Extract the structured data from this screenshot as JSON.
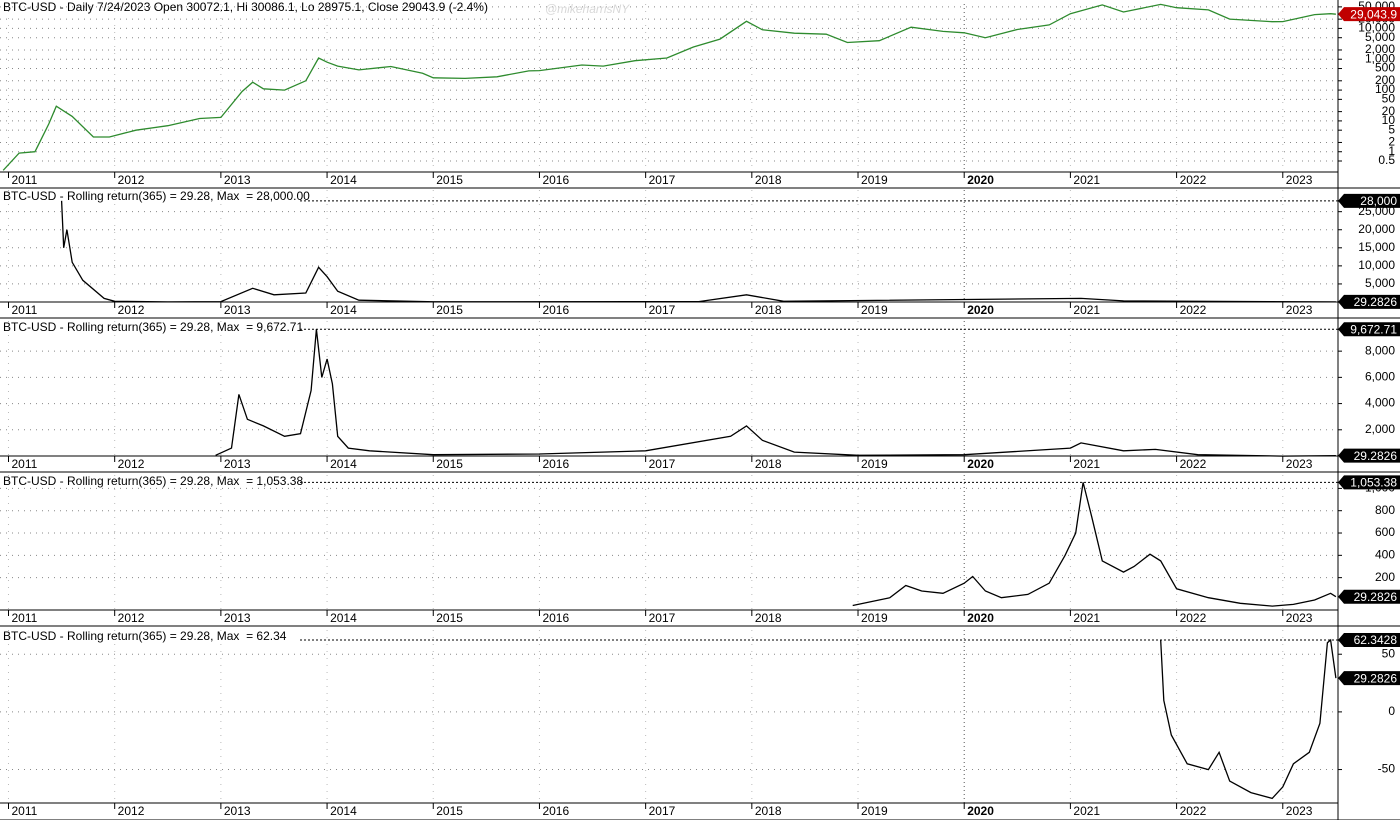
{
  "chart_data": [
    {
      "type": "line",
      "title": "BTC-USD - Daily 7/24/2023 Open 30072.1, Hi 30086.1, Lo 28975.1, Close 29043.9 (-2.4%)",
      "watermark": "@mikeharrisNY",
      "color": "#2e8b2e",
      "log_y": true,
      "grid": true,
      "marker_x": 2020,
      "x": [
        2010.95,
        2011.1,
        2011.25,
        2011.38,
        2011.45,
        2011.6,
        2011.8,
        2011.95,
        2012.2,
        2012.5,
        2012.8,
        2013.0,
        2013.2,
        2013.3,
        2013.4,
        2013.6,
        2013.8,
        2013.92,
        2014.0,
        2014.1,
        2014.3,
        2014.6,
        2014.9,
        2015.0,
        2015.3,
        2015.6,
        2015.9,
        2016.0,
        2016.4,
        2016.6,
        2016.9,
        2017.2,
        2017.45,
        2017.7,
        2017.95,
        2018.1,
        2018.4,
        2018.7,
        2018.9,
        2019.2,
        2019.5,
        2019.8,
        2020.0,
        2020.2,
        2020.5,
        2020.8,
        2021.0,
        2021.3,
        2021.5,
        2021.85,
        2022.0,
        2022.3,
        2022.5,
        2022.9,
        2023.0,
        2023.3,
        2023.45,
        2023.5
      ],
      "values": [
        0.25,
        0.9,
        1.0,
        8,
        30,
        14,
        3,
        3,
        5,
        7,
        12,
        13,
        90,
        180,
        110,
        100,
        200,
        1100,
        800,
        600,
        450,
        580,
        350,
        250,
        240,
        270,
        420,
        430,
        650,
        600,
        900,
        1100,
        2500,
        4500,
        17000,
        9000,
        7000,
        6500,
        3500,
        4000,
        11000,
        8000,
        7200,
        5000,
        9200,
        13000,
        30000,
        58000,
        34000,
        60000,
        47000,
        40000,
        20000,
        16500,
        16600,
        28000,
        30000,
        29043.9
      ],
      "xlim": [
        2010.92,
        2023.52
      ],
      "xticks": [
        2011,
        2012,
        2013,
        2014,
        2015,
        2016,
        2017,
        2018,
        2019,
        2020,
        2021,
        2022,
        2023
      ],
      "ylim": [
        0.22,
        62000
      ],
      "yticks": [
        {
          "value": 50000,
          "label": "50,000"
        },
        {
          "value": 20000,
          "label": "20,000"
        },
        {
          "value": 10000,
          "label": "10,000"
        },
        {
          "value": 5000,
          "label": "5,000"
        },
        {
          "value": 2000,
          "label": "2,000"
        },
        {
          "value": 1000,
          "label": "1,000"
        },
        500,
        200,
        100,
        50,
        20,
        10,
        5,
        2,
        1,
        0.5
      ],
      "annotations": [
        {
          "value": 29043.9,
          "label": "29,043.9",
          "color": "#c00000"
        }
      ]
    },
    {
      "type": "line",
      "title": "BTC-USD - Rolling return(365) = 29.28, Max  = 28,000.00",
      "color": "#000000",
      "log_y": false,
      "grid": true,
      "marker_x": 2020,
      "x": [
        2011.5,
        2011.52,
        2011.55,
        2011.6,
        2011.7,
        2011.9,
        2012.0,
        2012.5,
        2013.0,
        2013.3,
        2013.5,
        2013.8,
        2013.92,
        2014.0,
        2014.1,
        2014.3,
        2015.0,
        2017.5,
        2017.95,
        2018.3,
        2021.1,
        2021.5,
        2023.5
      ],
      "values": [
        28000,
        15000,
        20000,
        11000,
        6000,
        1000,
        200,
        30,
        100,
        3800,
        2000,
        2500,
        9600,
        7000,
        3000,
        500,
        50,
        100,
        2000,
        200,
        1000,
        300,
        29.28
      ],
      "xlim": [
        2010.92,
        2023.52
      ],
      "xticks": [
        2011,
        2012,
        2013,
        2014,
        2015,
        2016,
        2017,
        2018,
        2019,
        2020,
        2021,
        2022,
        2023
      ],
      "ylim": [
        0,
        31000
      ],
      "yticks": [
        {
          "value": 5000,
          "label": "5,000"
        },
        {
          "value": 10000,
          "label": "10,000"
        },
        {
          "value": 15000,
          "label": "15,000"
        },
        {
          "value": 20000,
          "label": "20,000"
        },
        {
          "value": 25000,
          "label": "25,000"
        }
      ],
      "annotations": [
        {
          "value": 28000,
          "label": "28,000",
          "color": "#000000"
        },
        {
          "value": 29.2826,
          "label": "29.2826",
          "color": "#000000"
        }
      ]
    },
    {
      "type": "line",
      "title": "BTC-USD - Rolling return(365) = 29.28, Max  = 9,672.71",
      "color": "#000000",
      "log_y": false,
      "grid": true,
      "marker_x": 2020,
      "x": [
        2012.95,
        2013.1,
        2013.17,
        2013.25,
        2013.4,
        2013.6,
        2013.75,
        2013.85,
        2013.9,
        2013.95,
        2014.0,
        2014.05,
        2014.1,
        2014.2,
        2014.4,
        2015.0,
        2016.0,
        2017.0,
        2017.8,
        2017.95,
        2018.1,
        2018.4,
        2019.0,
        2020.0,
        2021.0,
        2021.1,
        2021.5,
        2021.8,
        2022.2,
        2023.0,
        2023.5
      ],
      "values": [
        50,
        600,
        4700,
        2800,
        2300,
        1500,
        1700,
        5000,
        9672.71,
        6000,
        7400,
        5500,
        1500,
        600,
        400,
        100,
        150,
        400,
        1500,
        2300,
        1200,
        300,
        50,
        100,
        600,
        1000,
        400,
        500,
        100,
        -10,
        29.28
      ],
      "xlim": [
        2010.92,
        2023.52
      ],
      "xticks": [
        2011,
        2012,
        2013,
        2014,
        2015,
        2016,
        2017,
        2018,
        2019,
        2020,
        2021,
        2022,
        2023
      ],
      "ylim": [
        0,
        10300
      ],
      "yticks": [
        {
          "value": 2000,
          "label": "2,000"
        },
        {
          "value": 4000,
          "label": "4,000"
        },
        {
          "value": 6000,
          "label": "6,000"
        },
        {
          "value": 8000,
          "label": "8,000"
        }
      ],
      "annotations": [
        {
          "value": 9672.71,
          "label": "9,672.71",
          "color": "#000000"
        },
        {
          "value": 29.2826,
          "label": "29.2826",
          "color": "#000000"
        }
      ]
    },
    {
      "type": "line",
      "title": "BTC-USD - Rolling return(365) = 29.28, Max  = 1,053.38",
      "color": "#000000",
      "log_y": false,
      "grid": true,
      "marker_x": 2020,
      "x": [
        2018.95,
        2019.3,
        2019.45,
        2019.6,
        2019.8,
        2020.0,
        2020.08,
        2020.2,
        2020.35,
        2020.6,
        2020.8,
        2020.95,
        2021.05,
        2021.12,
        2021.2,
        2021.3,
        2021.5,
        2021.6,
        2021.75,
        2021.85,
        2022.0,
        2022.3,
        2022.6,
        2022.9,
        2023.1,
        2023.3,
        2023.45,
        2023.5
      ],
      "values": [
        -50,
        20,
        130,
        80,
        60,
        150,
        210,
        80,
        20,
        50,
        150,
        400,
        600,
        1053.38,
        750,
        350,
        250,
        300,
        410,
        350,
        100,
        20,
        -30,
        -55,
        -40,
        0,
        60,
        29.28
      ],
      "xlim": [
        2010.92,
        2023.52
      ],
      "xticks": [
        2011,
        2012,
        2013,
        2014,
        2015,
        2016,
        2017,
        2018,
        2019,
        2020,
        2021,
        2022,
        2023
      ],
      "ylim": [
        -90,
        1120
      ],
      "yticks": [
        200,
        400,
        600,
        800,
        {
          "value": 1000,
          "label": "1,000"
        }
      ],
      "annotations": [
        {
          "value": 1053.38,
          "label": "1,053.38",
          "color": "#000000"
        },
        {
          "value": 29.2826,
          "label": "29.2826",
          "color": "#000000"
        }
      ]
    },
    {
      "type": "line",
      "title": "BTC-USD - Rolling return(365) = 29.28, Max  = 62.34",
      "color": "#000000",
      "log_y": false,
      "grid": true,
      "marker_x": 2020,
      "x": [
        2021.85,
        2021.88,
        2021.95,
        2022.1,
        2022.3,
        2022.4,
        2022.5,
        2022.7,
        2022.9,
        2023.0,
        2023.1,
        2023.25,
        2023.35,
        2023.42,
        2023.45,
        2023.5
      ],
      "values": [
        62,
        10,
        -20,
        -45,
        -50,
        -35,
        -60,
        -70,
        -75,
        -65,
        -45,
        -35,
        -10,
        60,
        62.34,
        29.28
      ],
      "xlim": [
        2010.92,
        2023.52
      ],
      "xticks": [
        2011,
        2012,
        2013,
        2014,
        2015,
        2016,
        2017,
        2018,
        2019,
        2020,
        2021,
        2022,
        2023
      ],
      "ylim": [
        -79,
        71
      ],
      "yticks": [
        -50,
        0,
        50
      ],
      "annotations": [
        {
          "value": 62.3428,
          "label": "62.3428",
          "color": "#000000"
        },
        {
          "value": 29.2826,
          "label": "29.2826",
          "color": "#000000"
        }
      ]
    }
  ]
}
